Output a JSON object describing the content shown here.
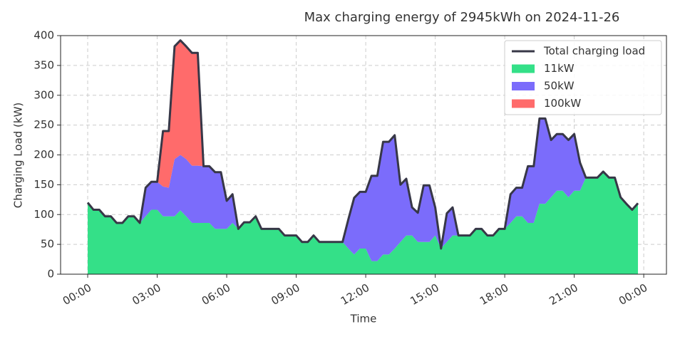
{
  "chart_data": {
    "type": "stacked_area",
    "title": "Max charging energy of 2945kWh on 2024-11-26",
    "x_label": "Time",
    "y_label": "Charging Load (kW)",
    "x": [
      0,
      0.25,
      0.5,
      0.75,
      1,
      1.25,
      1.5,
      1.75,
      2,
      2.25,
      2.5,
      2.75,
      3,
      3.25,
      3.5,
      3.75,
      4,
      4.25,
      4.5,
      4.75,
      5,
      5.25,
      5.5,
      5.75,
      6,
      6.25,
      6.5,
      6.75,
      7,
      7.25,
      7.5,
      7.75,
      8,
      8.25,
      8.5,
      8.75,
      9,
      9.25,
      9.5,
      9.75,
      10,
      10.25,
      10.5,
      10.75,
      11,
      11.25,
      11.5,
      11.75,
      12,
      12.25,
      12.5,
      12.75,
      13,
      13.25,
      13.5,
      13.75,
      14,
      14.25,
      14.5,
      14.75,
      15,
      15.25,
      15.5,
      15.75,
      16,
      16.25,
      16.5,
      16.75,
      17,
      17.25,
      17.5,
      17.75,
      18,
      18.25,
      18.5,
      18.75,
      19,
      19.25,
      19.5,
      19.75,
      20,
      20.25,
      20.5,
      20.75,
      21,
      21.25,
      21.5,
      21.75,
      22,
      22.25,
      22.5,
      22.75,
      23,
      23.25,
      23.5,
      23.75
    ],
    "series": [
      {
        "name": "11kW",
        "color": "#34e088",
        "values": [
          120,
          108,
          108,
          97,
          97,
          86,
          86,
          97,
          97,
          86,
          97,
          108,
          108,
          97,
          97,
          97,
          107,
          97,
          86,
          86,
          86,
          86,
          76,
          76,
          76,
          86,
          76,
          87,
          87,
          97,
          76,
          76,
          76,
          76,
          65,
          65,
          65,
          54,
          54,
          65,
          54,
          54,
          54,
          54,
          54,
          43,
          33,
          43,
          43,
          22,
          22,
          33,
          33,
          43,
          54,
          65,
          65,
          54,
          54,
          54,
          65,
          43,
          54,
          65,
          65,
          65,
          65,
          76,
          76,
          65,
          65,
          76,
          76,
          86,
          97,
          97,
          86,
          86,
          118,
          118,
          129,
          140,
          140,
          129,
          140,
          140,
          162,
          162,
          162,
          172,
          162,
          162,
          129,
          118,
          108,
          119
        ]
      },
      {
        "name": "50kW",
        "color": "#7b6cfb",
        "values": [
          0,
          0,
          0,
          0,
          0,
          0,
          0,
          0,
          0,
          0,
          48,
          47,
          47,
          50,
          48,
          96,
          93,
          96,
          96,
          96,
          95,
          95,
          95,
          95,
          47,
          48,
          0,
          0,
          0,
          0,
          0,
          0,
          0,
          0,
          0,
          0,
          0,
          0,
          0,
          0,
          0,
          0,
          0,
          0,
          0,
          49,
          95,
          95,
          95,
          143,
          143,
          189,
          189,
          190,
          96,
          95,
          47,
          49,
          95,
          95,
          47,
          0,
          48,
          47,
          0,
          0,
          0,
          0,
          0,
          0,
          0,
          0,
          0,
          48,
          48,
          48,
          95,
          95,
          143,
          143,
          96,
          95,
          95,
          96,
          95,
          47,
          0,
          0,
          0,
          0,
          0,
          0,
          0,
          0,
          0,
          0
        ]
      },
      {
        "name": "100kW",
        "color": "#ff6b6b",
        "values": [
          0,
          0,
          0,
          0,
          0,
          0,
          0,
          0,
          0,
          0,
          0,
          0,
          0,
          93,
          95,
          189,
          192,
          189,
          189,
          189,
          0,
          0,
          0,
          0,
          0,
          0,
          0,
          0,
          0,
          0,
          0,
          0,
          0,
          0,
          0,
          0,
          0,
          0,
          0,
          0,
          0,
          0,
          0,
          0,
          0,
          0,
          0,
          0,
          0,
          0,
          0,
          0,
          0,
          0,
          0,
          0,
          0,
          0,
          0,
          0,
          0,
          0,
          0,
          0,
          0,
          0,
          0,
          0,
          0,
          0,
          0,
          0,
          0,
          0,
          0,
          0,
          0,
          0,
          0,
          0,
          0,
          0,
          0,
          0,
          0,
          0,
          0,
          0,
          0,
          0,
          0,
          0,
          0,
          0,
          0,
          0
        ]
      }
    ],
    "total": {
      "name": "Total charging load",
      "color": "#373747",
      "values": [
        120,
        108,
        108,
        97,
        97,
        86,
        86,
        97,
        97,
        86,
        145,
        155,
        155,
        240,
        240,
        382,
        392,
        382,
        371,
        371,
        181,
        181,
        171,
        171,
        123,
        134,
        76,
        87,
        87,
        97,
        76,
        76,
        76,
        76,
        65,
        65,
        65,
        54,
        54,
        65,
        54,
        54,
        54,
        54,
        54,
        92,
        128,
        138,
        138,
        165,
        165,
        222,
        222,
        233,
        150,
        160,
        112,
        103,
        149,
        149,
        112,
        43,
        102,
        112,
        65,
        65,
        65,
        76,
        76,
        65,
        65,
        76,
        76,
        134,
        145,
        145,
        181,
        181,
        261,
        261,
        225,
        235,
        235,
        225,
        235,
        187,
        162,
        162,
        162,
        172,
        162,
        162,
        129,
        118,
        108,
        119
      ]
    },
    "xlim": [
      -1.17,
      24.98
    ],
    "xticks": [
      {
        "value": 0,
        "label": "00:00"
      },
      {
        "value": 3,
        "label": "03:00"
      },
      {
        "value": 6,
        "label": "06:00"
      },
      {
        "value": 9,
        "label": "09:00"
      },
      {
        "value": 12,
        "label": "12:00"
      },
      {
        "value": 15,
        "label": "15:00"
      },
      {
        "value": 18,
        "label": "18:00"
      },
      {
        "value": 21,
        "label": "21:00"
      },
      {
        "value": 24,
        "label": "00:00"
      }
    ],
    "ylim": [
      0,
      400
    ],
    "yticks": [
      0,
      50,
      100,
      150,
      200,
      250,
      300,
      350,
      400
    ],
    "grid": true,
    "legend": "upper right"
  }
}
